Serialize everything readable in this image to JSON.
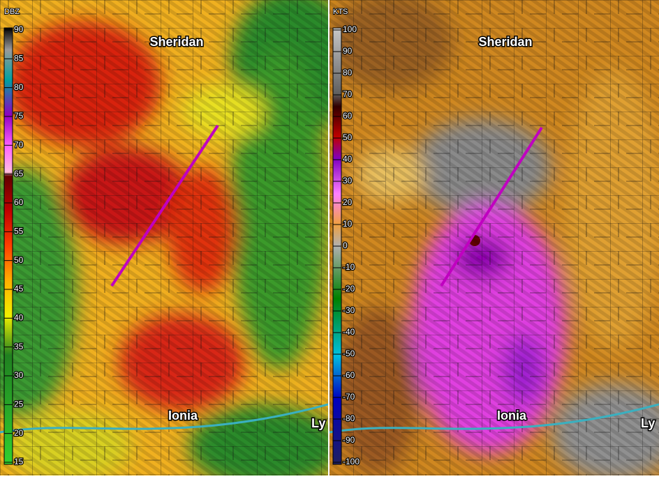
{
  "panels": [
    {
      "unit": "DBZ",
      "scale": [
        90,
        85,
        80,
        75,
        70,
        65,
        60,
        55,
        50,
        45,
        40,
        35,
        30,
        25,
        20,
        15
      ],
      "places": [
        "Sheridan",
        "Ionia",
        "Ly"
      ]
    },
    {
      "unit": "KTS",
      "scale": [
        100,
        90,
        80,
        70,
        60,
        50,
        40,
        30,
        20,
        10,
        0,
        -10,
        -20,
        -30,
        -40,
        -50,
        -60,
        -70,
        -80,
        -90,
        -100
      ],
      "places": [
        "Sheridan",
        "Ionia",
        "Ly"
      ]
    }
  ]
}
